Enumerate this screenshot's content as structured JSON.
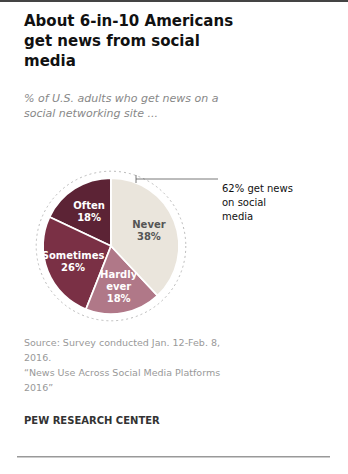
{
  "chart_data": {
    "type": "pie",
    "title": "About 6-in-10 Americans\nget news from social\nmedia",
    "subtitle": "% of U.S. adults who get news on a\nsocial networking site ...",
    "categories": [
      "Often",
      "Sometimes",
      "Hardly\never",
      "Never"
    ],
    "values": [
      18,
      26,
      18,
      38
    ],
    "value_labels": [
      "18%",
      "26%",
      "18%",
      "38%"
    ],
    "colors": [
      "#5c2335",
      "#7a3045",
      "#b07888",
      "#eae5dc"
    ],
    "data_labels": true,
    "annotations": [
      "62% get news\non social\nmedia"
    ],
    "source": "Source: Survey conducted Jan. 12-Feb. 8,\n2016.\n“News Use Across Social Media Platforms\n2016”",
    "footer": "PEW RESEARCH CENTER"
  }
}
